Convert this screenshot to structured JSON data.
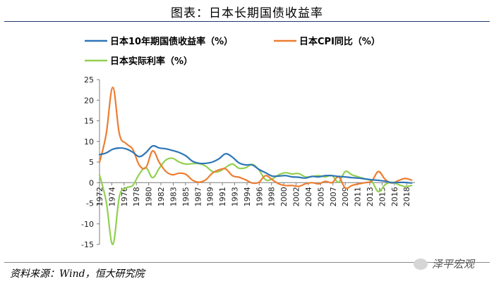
{
  "title": "图表：日本长期国债收益率",
  "source": "资料来源：Wind，恒大研究院",
  "watermark": "泽平宏观",
  "colors": {
    "series1": "#2e75b6",
    "series2": "#ed7d31",
    "series3": "#92d050",
    "axis": "#7f7f7f",
    "title_rule": "#1f3a6e"
  },
  "chart_data": {
    "type": "line",
    "title": "图表：日本长期国债收益率",
    "xlabel": "",
    "ylabel": "",
    "ylim": [
      -15,
      25
    ],
    "yticks": [
      25,
      20,
      15,
      10,
      5,
      0,
      -5,
      -10,
      -15
    ],
    "xlim": [
      1972,
      2019.5
    ],
    "xtick_labels": [
      "1972",
      "1974",
      "1976",
      "1978",
      "1980",
      "1982",
      "1983",
      "1985",
      "1987",
      "1989",
      "1991",
      "1993",
      "1994",
      "1996",
      "1998",
      "2000",
      "2002",
      "2004",
      "2005",
      "2007",
      "2009",
      "2011",
      "2013",
      "2015",
      "2016",
      "2018"
    ],
    "xtick_positions": [
      1972,
      1973.85,
      1975.7,
      1977.55,
      1979.4,
      1981.25,
      1983.1,
      1984.95,
      1986.8,
      1988.65,
      1990.5,
      1992.35,
      1994.2,
      1996.05,
      1997.9,
      1999.75,
      2001.6,
      2003.45,
      2005.3,
      2007.15,
      2009,
      2010.85,
      2012.7,
      2014.55,
      2016.4,
      2018.25
    ],
    "legend_location": "top-left",
    "series": [
      {
        "name": "日本10年期国债收益率（%）",
        "color": "#2e75b6",
        "x": [
          1972,
          1973,
          1974,
          1975,
          1976,
          1977,
          1978,
          1979,
          1980,
          1981,
          1982,
          1983,
          1984,
          1985,
          1986,
          1987,
          1988,
          1989,
          1990,
          1991,
          1992,
          1993,
          1994,
          1995,
          1996,
          1997,
          1998,
          1999,
          2000,
          2001,
          2002,
          2003,
          2004,
          2005,
          2006,
          2007,
          2008,
          2009,
          2010,
          2011,
          2012,
          2013,
          2014,
          2015,
          2016,
          2017,
          2018,
          2019
        ],
        "values": [
          6.8,
          7.2,
          8.1,
          8.4,
          8.2,
          7.4,
          6.3,
          7.3,
          8.9,
          8.4,
          8.2,
          7.8,
          7.3,
          6.5,
          5.2,
          4.7,
          4.7,
          5.0,
          5.8,
          7.0,
          6.2,
          4.8,
          4.3,
          4.3,
          3.2,
          2.4,
          1.6,
          1.6,
          1.7,
          1.4,
          1.3,
          1.1,
          1.5,
          1.4,
          1.7,
          1.7,
          1.5,
          1.4,
          1.2,
          1.1,
          0.9,
          0.7,
          0.55,
          0.35,
          0.0,
          0.05,
          0.05,
          -0.1
        ]
      },
      {
        "name": "日本CPI同比（%）",
        "color": "#ed7d31",
        "x": [
          1972,
          1973,
          1974,
          1975,
          1976,
          1977,
          1978,
          1979,
          1980,
          1981,
          1982,
          1983,
          1984,
          1985,
          1986,
          1987,
          1988,
          1989,
          1990,
          1991,
          1992,
          1993,
          1994,
          1995,
          1996,
          1997,
          1998,
          1999,
          2000,
          2001,
          2002,
          2003,
          2004,
          2005,
          2006,
          2007,
          2008,
          2009,
          2010,
          2011,
          2012,
          2013,
          2014,
          2015,
          2016,
          2017,
          2018,
          2019
        ],
        "values": [
          4.9,
          11.7,
          23.1,
          11.8,
          9.5,
          8.1,
          4.2,
          3.7,
          7.7,
          4.9,
          2.7,
          1.9,
          2.3,
          2.0,
          0.6,
          0.1,
          0.7,
          2.3,
          3.1,
          3.3,
          1.7,
          1.3,
          0.7,
          -0.1,
          0.1,
          1.7,
          0.7,
          -0.3,
          -0.7,
          -0.7,
          -0.9,
          -0.3,
          0.0,
          -0.3,
          0.3,
          0.0,
          1.4,
          -1.3,
          -0.7,
          -0.3,
          0.0,
          0.4,
          2.7,
          0.8,
          -0.1,
          0.5,
          1.0,
          0.6
        ]
      },
      {
        "name": "日本实际利率（%）",
        "color": "#92d050",
        "x": [
          1972,
          1973,
          1974,
          1975,
          1976,
          1977,
          1978,
          1979,
          1980,
          1981,
          1982,
          1983,
          1984,
          1985,
          1986,
          1987,
          1988,
          1989,
          1990,
          1991,
          1992,
          1993,
          1994,
          1995,
          1996,
          1997,
          1998,
          1999,
          2000,
          2001,
          2002,
          2003,
          2004,
          2005,
          2006,
          2007,
          2008,
          2009,
          2010,
          2011,
          2012,
          2013,
          2014,
          2015,
          2016,
          2017,
          2018,
          2019
        ],
        "values": [
          1.9,
          -4.5,
          -15.0,
          -3.4,
          -1.3,
          -0.7,
          2.1,
          3.6,
          1.2,
          3.5,
          5.5,
          5.9,
          5.0,
          4.5,
          4.6,
          4.6,
          4.0,
          2.7,
          2.7,
          3.7,
          4.5,
          3.5,
          3.6,
          4.4,
          3.1,
          0.7,
          0.9,
          1.9,
          2.4,
          2.1,
          2.2,
          1.4,
          1.5,
          1.7,
          1.4,
          1.7,
          0.1,
          2.7,
          1.9,
          1.4,
          0.9,
          0.3,
          -2.2,
          -0.5,
          0.1,
          -0.45,
          -0.95,
          -0.7
        ]
      }
    ]
  }
}
